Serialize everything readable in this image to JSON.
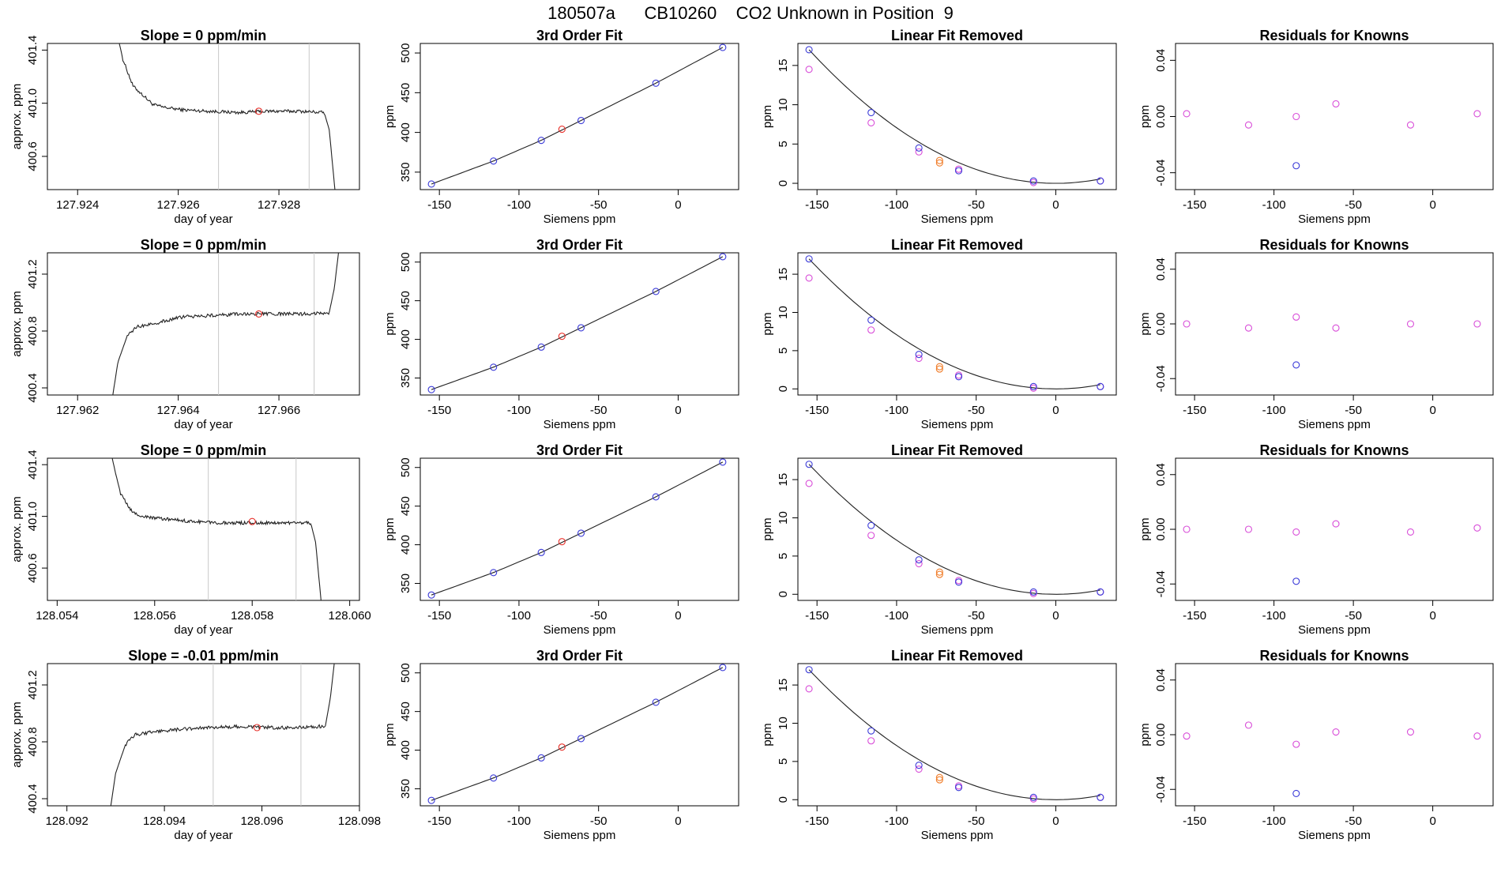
{
  "title": "180507a      CB10260    CO2 Unknown in Position  9",
  "colors": {
    "line": "#222222",
    "unknown_point": "#e8302a",
    "known_point": "#3a3ad8",
    "residual_point": "#d84cd8",
    "unknown_removed": "#f07d2a",
    "vline": "#c8c8c8"
  },
  "rows": [
    {
      "time_panel": {
        "title": "Slope =  0  ppm/min",
        "xlabel": "day of year",
        "ylabel": "approx. ppm",
        "xlim": [
          127.9234,
          127.9296
        ],
        "ylim": [
          400.35,
          401.45
        ],
        "xticks": [
          "127.924",
          "127.926",
          "127.928"
        ],
        "yticks": [
          "400.6",
          "401.0",
          "401.4"
        ],
        "vlines": [
          127.9268,
          127.9286
        ],
        "marker": [
          127.9276,
          400.94
        ],
        "trace": [
          [
            127.9248,
            401.5
          ],
          [
            127.9249,
            401.33
          ],
          [
            127.9251,
            401.13
          ],
          [
            127.9253,
            401.06
          ],
          [
            127.9255,
            400.99
          ],
          [
            127.9257,
            400.97
          ],
          [
            127.9261,
            400.95
          ],
          [
            127.9266,
            400.94
          ],
          [
            127.9272,
            400.93
          ],
          [
            127.9278,
            400.94
          ],
          [
            127.9284,
            400.94
          ],
          [
            127.9289,
            400.93
          ],
          [
            127.929,
            400.8
          ],
          [
            127.9291,
            400.4
          ],
          [
            127.92915,
            400.2
          ]
        ],
        "trace_start": 127.9249,
        "trace_end": 127.9289,
        "level": 400.94,
        "noise": 0.012
      }
    },
    {
      "time_panel": {
        "title": "Slope =  0  ppm/min",
        "xlabel": "day of year",
        "ylabel": "approx. ppm",
        "xlim": [
          127.9614,
          127.9676
        ],
        "ylim": [
          400.35,
          401.35
        ],
        "xticks": [
          "127.962",
          "127.964",
          "127.966"
        ],
        "yticks": [
          "400.4",
          "400.8",
          "401.2"
        ],
        "vlines": [
          127.9648,
          127.9667
        ],
        "marker": [
          127.9656,
          400.92
        ],
        "trace": [
          [
            127.9626,
            400.1
          ],
          [
            127.9627,
            400.35
          ],
          [
            127.9628,
            400.58
          ],
          [
            127.963,
            400.78
          ],
          [
            127.9632,
            400.83
          ],
          [
            127.9636,
            400.86
          ],
          [
            127.9641,
            400.9
          ],
          [
            127.9647,
            400.91
          ],
          [
            127.9653,
            400.92
          ],
          [
            127.9659,
            400.92
          ],
          [
            127.9665,
            400.92
          ],
          [
            127.967,
            400.93
          ],
          [
            127.9671,
            401.1
          ],
          [
            127.9672,
            401.4
          ]
        ],
        "trace_start": 127.963,
        "trace_end": 127.967,
        "level": 400.91,
        "noise": 0.012
      }
    },
    {
      "time_panel": {
        "title": "Slope =  0  ppm/min",
        "xlabel": "day of year",
        "ylabel": "approx. ppm",
        "xlim": [
          128.0538,
          128.0602
        ],
        "ylim": [
          400.35,
          401.45
        ],
        "xticks": [
          "128.054",
          "128.056",
          "128.058",
          "128.060"
        ],
        "yticks": [
          "400.6",
          "401.0",
          "401.4"
        ],
        "vlines": [
          128.0571,
          128.0589
        ],
        "marker": [
          128.058,
          400.96
        ],
        "trace": [
          [
            128.0551,
            401.5
          ],
          [
            128.0552,
            401.33
          ],
          [
            128.0553,
            401.18
          ],
          [
            128.0555,
            401.05
          ],
          [
            128.0557,
            401.0
          ],
          [
            128.0562,
            400.98
          ],
          [
            128.0568,
            400.96
          ],
          [
            128.0574,
            400.95
          ],
          [
            128.058,
            400.95
          ],
          [
            128.0587,
            400.95
          ],
          [
            128.0592,
            400.95
          ],
          [
            128.0593,
            400.8
          ],
          [
            128.0594,
            400.4
          ],
          [
            128.05945,
            400.2
          ]
        ],
        "trace_start": 128.0553,
        "trace_end": 128.0592,
        "level": 400.95,
        "noise": 0.012
      }
    },
    {
      "time_panel": {
        "title": "Slope =  -0.01  ppm/min",
        "xlabel": "day of year",
        "ylabel": "approx. ppm",
        "xlim": [
          128.0916,
          128.098
        ],
        "ylim": [
          400.35,
          401.35
        ],
        "xticks": [
          "128.092",
          "128.094",
          "128.096",
          "128.098"
        ],
        "yticks": [
          "400.4",
          "400.8",
          "401.2"
        ],
        "vlines": [
          128.095,
          128.0968
        ],
        "marker": [
          128.0959,
          400.9
        ],
        "trace": [
          [
            128.0928,
            400.1
          ],
          [
            128.0929,
            400.35
          ],
          [
            128.093,
            400.58
          ],
          [
            128.0932,
            400.78
          ],
          [
            128.0934,
            400.85
          ],
          [
            128.0938,
            400.87
          ],
          [
            128.0944,
            400.89
          ],
          [
            128.095,
            400.9
          ],
          [
            128.0956,
            400.91
          ],
          [
            128.0962,
            400.9
          ],
          [
            128.0967,
            400.9
          ],
          [
            128.0973,
            400.91
          ],
          [
            128.0974,
            401.1
          ],
          [
            128.0975,
            401.4
          ]
        ],
        "trace_start": 128.0932,
        "trace_end": 128.0973,
        "level": 400.89,
        "noise": 0.012
      }
    }
  ],
  "fit_panel": {
    "title": "3rd Order Fit",
    "xlabel": "Siemens ppm",
    "ylabel": "ppm",
    "xlim": [
      -162,
      38
    ],
    "ylim": [
      328,
      512
    ],
    "xticks": [
      -150,
      -100,
      -50,
      0
    ],
    "xtick_labels": [
      "-150",
      "-100",
      "-50",
      "0"
    ],
    "yticks": [
      350,
      400,
      450,
      500
    ],
    "ytick_labels": [
      "350",
      "400",
      "450",
      "500"
    ]
  },
  "removed_panel": {
    "title": "Linear Fit Removed",
    "xlabel": "Siemens ppm",
    "ylabel": "ppm",
    "xlim": [
      -162,
      38
    ],
    "ylim": [
      -0.8,
      17.8
    ],
    "xticks": [
      -150,
      -100,
      -50,
      0
    ],
    "xtick_labels": [
      "-150",
      "-100",
      "-50",
      "0"
    ],
    "yticks": [
      0,
      5,
      10,
      15
    ],
    "ytick_labels": [
      "0",
      "5",
      "10",
      "15"
    ]
  },
  "resid_panel": {
    "title": "Residuals for Knowns",
    "xlabel": "Siemens ppm",
    "xlim": [
      -162,
      38
    ],
    "ylim": [
      -0.052,
      0.052
    ],
    "xticks": [
      -150,
      -100,
      -50,
      0
    ],
    "xtick_labels": [
      "-150",
      "-100",
      "-50",
      "0"
    ],
    "yticks": [
      -0.04,
      0.0,
      0.04
    ],
    "ytick_labels": [
      "-0.04",
      "0.00",
      "0.04"
    ]
  },
  "chart_data": {
    "type": "scatter",
    "title": "180507a      CB10260    CO2 Unknown in Position  9",
    "calibration": {
      "knowns_x": [
        -155,
        -116,
        -86,
        -61,
        -14,
        28
      ],
      "knowns_y": [
        335,
        364,
        390,
        415,
        462,
        507
      ],
      "unknown": {
        "x": -73,
        "y": 404
      },
      "fit_curve": "3rd order polynomial through knowns"
    },
    "linear_fit_removed": {
      "knowns_blue_y": [
        17.0,
        9.0,
        4.5,
        1.6,
        0.3,
        0.3
      ],
      "knowns_magenta_y": [
        14.5,
        7.7,
        4.0,
        1.8,
        0.1,
        0.3
      ],
      "unknown_y": 2.9,
      "curve": "quadratic with minimum at x ≈ 0"
    },
    "residuals_for_knowns": [
      {
        "magenta": [
          0.002,
          -0.006,
          0.0,
          0.009,
          -0.006,
          0.002
        ],
        "blue_x": -86,
        "blue_y": -0.035
      },
      {
        "magenta": [
          0.0,
          -0.003,
          0.005,
          -0.003,
          0.0,
          0.0
        ],
        "blue_x": -86,
        "blue_y": -0.03
      },
      {
        "magenta": [
          0.0,
          0.0,
          -0.002,
          0.004,
          -0.002,
          0.001
        ],
        "blue_x": -86,
        "blue_y": -0.038
      },
      {
        "magenta": [
          -0.001,
          0.007,
          -0.007,
          0.002,
          0.002,
          -0.001
        ],
        "blue_x": -86,
        "blue_y": -0.043
      }
    ]
  }
}
